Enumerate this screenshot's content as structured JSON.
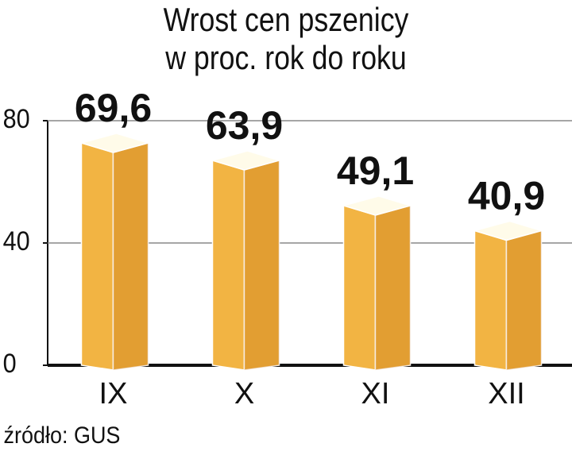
{
  "chart_data": {
    "type": "bar3d",
    "title": "Wrost cen pszenicy",
    "subtitle": "w proc. rok do roku",
    "categories": [
      "IX",
      "X",
      "XI",
      "XII"
    ],
    "values": [
      69.6,
      63.9,
      49.1,
      40.9
    ],
    "value_labels": [
      "69,6",
      "63,9",
      "49,1",
      "40,9"
    ],
    "color": "#f2b443",
    "ylim": [
      0,
      80
    ],
    "yticks": [
      0,
      40,
      80
    ],
    "grid": true,
    "source": "źródło: GUS"
  }
}
